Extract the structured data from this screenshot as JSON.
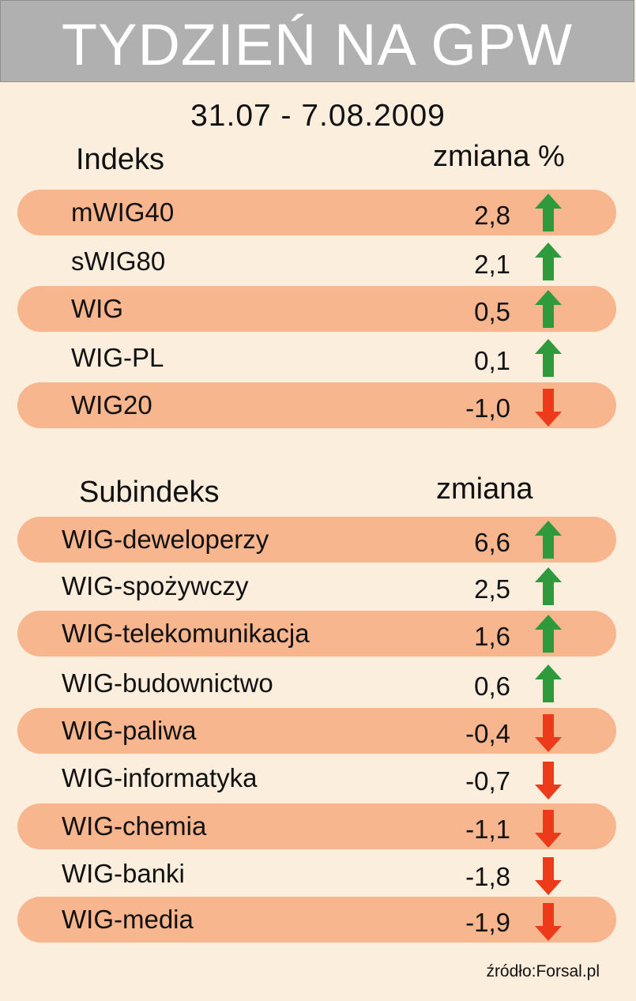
{
  "title": "TYDZIEŃ NA GPW",
  "date_range": "31.07 - 7.08.2009",
  "indeks": {
    "header_name": "Indeks",
    "header_change": "zmiana %",
    "rows": [
      {
        "name": "mWIG40",
        "value": "2,8",
        "direction": "up"
      },
      {
        "name": "sWIG80",
        "value": "2,1",
        "direction": "up"
      },
      {
        "name": "WIG",
        "value": "0,5",
        "direction": "up"
      },
      {
        "name": "WIG-PL",
        "value": "0,1",
        "direction": "up"
      },
      {
        "name": "WIG20",
        "value": "-1,0",
        "direction": "down"
      }
    ]
  },
  "subindeks": {
    "header_name": "Subindeks",
    "header_change": "zmiana",
    "rows": [
      {
        "name": "WIG-deweloperzy",
        "value": "6,6",
        "direction": "up"
      },
      {
        "name": "WIG-spożywczy",
        "value": "2,5",
        "direction": "up"
      },
      {
        "name": "WIG-telekomunikacja",
        "value": "1,6",
        "direction": "up"
      },
      {
        "name": "WIG-budownictwo",
        "value": "0,6",
        "direction": "up"
      },
      {
        "name": "WIG-paliwa",
        "value": "-0,4",
        "direction": "down"
      },
      {
        "name": "WIG-informatyka",
        "value": "-0,7",
        "direction": "down"
      },
      {
        "name": "WIG-chemia",
        "value": "-1,1",
        "direction": "down"
      },
      {
        "name": "WIG-banki",
        "value": "-1,8",
        "direction": "down"
      },
      {
        "name": "WIG-media",
        "value": "-1,9",
        "direction": "down"
      }
    ]
  },
  "source": "źródło:Forsal.pl",
  "colors": {
    "background": "#fbeedd",
    "band": "#f8b68f",
    "header": "#b0b0b0",
    "up_arrow": "#2e9a3c",
    "down_arrow": "#ec3a1a"
  },
  "icons": {
    "up": "arrow-up-icon",
    "down": "arrow-down-icon"
  }
}
